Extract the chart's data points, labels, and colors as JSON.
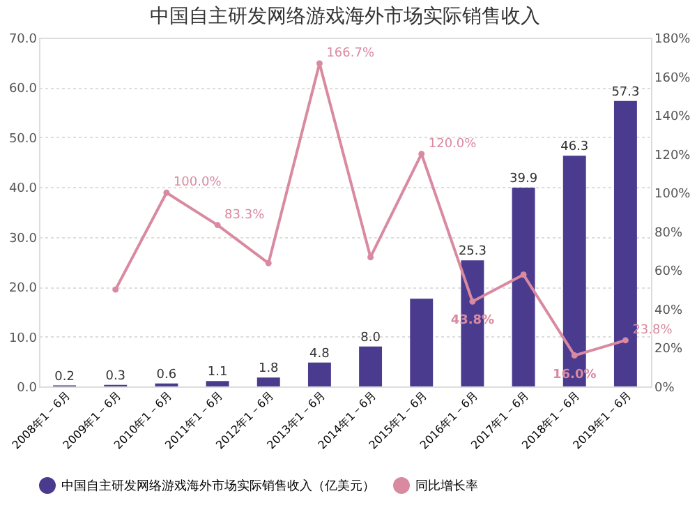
{
  "chart_data": {
    "type": "bar",
    "title": "中国自主研发网络游戏海外市场实际销售收入",
    "categories": [
      "2008年1－6月",
      "2009年1－6月",
      "2010年1－6月",
      "2011年1－6月",
      "2012年1－6月",
      "2013年1－6月",
      "2014年1－6月",
      "2015年1－6月",
      "2016年1－6月",
      "2017年1－6月",
      "2018年1－6月",
      "2019年1－6月"
    ],
    "series": [
      {
        "name": "中国自主研发网络游戏海外市场实际销售收入（亿美元）",
        "color": "#4b3b8f",
        "values": [
          0.2,
          0.3,
          0.6,
          1.1,
          1.8,
          4.8,
          8.0,
          17.6,
          25.3,
          39.9,
          46.3,
          57.3
        ],
        "value_labels": [
          "0.2",
          "0.3",
          "0.6",
          "1.1",
          "1.8",
          "4.8",
          "8.0",
          null,
          "25.3",
          "39.9",
          "46.3",
          "57.3"
        ]
      },
      {
        "name": "同比增长率",
        "type": "line",
        "axis": "y2",
        "marker": "circle",
        "color": "#d98aa0",
        "values": [
          null,
          50.0,
          100.0,
          83.3,
          63.6,
          166.7,
          66.7,
          120.0,
          43.8,
          57.7,
          16.0,
          23.8
        ],
        "value_labels": [
          null,
          null,
          "100.0%",
          "83.3%",
          null,
          "166.7%",
          null,
          "120.0%",
          "43.8%",
          null,
          "16.0%",
          "23.8%"
        ]
      }
    ],
    "ylim": [
      0,
      70
    ],
    "yticks": [
      {
        "value": 0,
        "label": "0.0"
      },
      {
        "value": 10,
        "label": "10.0"
      },
      {
        "value": 20,
        "label": "20.0"
      },
      {
        "value": 30,
        "label": "30.0"
      },
      {
        "value": 40,
        "label": "40.0"
      },
      {
        "value": 50,
        "label": "50.0"
      },
      {
        "value": 60,
        "label": "60.0"
      },
      {
        "value": 70,
        "label": "70.0"
      }
    ],
    "y2lim": [
      0,
      180
    ],
    "y2ticks": [
      {
        "value": 0,
        "label": "0%"
      },
      {
        "value": 20,
        "label": "20%"
      },
      {
        "value": 40,
        "label": "40%"
      },
      {
        "value": 60,
        "label": "60%"
      },
      {
        "value": 80,
        "label": "80%"
      },
      {
        "value": 100,
        "label": "100%"
      },
      {
        "value": 120,
        "label": "120%"
      },
      {
        "value": 140,
        "label": "140%"
      },
      {
        "value": 160,
        "label": "160%"
      },
      {
        "value": 180,
        "label": "180%"
      }
    ],
    "grid": "y",
    "legend": "bottom"
  }
}
